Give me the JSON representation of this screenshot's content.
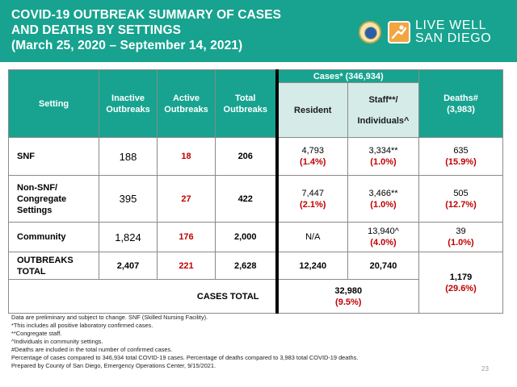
{
  "title": {
    "line1": "COVID-19 OUTBREAK SUMMARY OF CASES",
    "line2": "AND DEATHS BY SETTINGS",
    "line3": "(March 25, 2020 – September 14, 2021)"
  },
  "logo": {
    "line1": "LIVE WELL",
    "line2": "SAN DIEGO"
  },
  "table": {
    "headers": {
      "setting": "Setting",
      "inactive_1": "Inactive",
      "inactive_2": "Outbreaks",
      "active_1": "Active",
      "active_2": "Outbreaks",
      "total_1": "Total",
      "total_2": "Outbreaks",
      "cases_group": "Cases* (346,934)",
      "resident": "Resident",
      "staff_1": "Staff**/",
      "staff_2": "Individuals^",
      "deaths_1": "Deaths#",
      "deaths_2": "(3,983)"
    },
    "rows": [
      {
        "setting_1": "SNF",
        "setting_2": "",
        "setting_3": "",
        "inactive": "188",
        "active": "18",
        "total": "206",
        "resident": "4,793",
        "resident_pct": "(1.4%)",
        "staff": "3,334**",
        "staff_pct": "(1.0%)",
        "deaths": "635",
        "deaths_pct": "(15.9%)"
      },
      {
        "setting_1": "Non-SNF/",
        "setting_2": "Congregate",
        "setting_3": "Settings",
        "inactive": "395",
        "active": "27",
        "total": "422",
        "resident": "7,447",
        "resident_pct": "(2.1%)",
        "staff": "3,466**",
        "staff_pct": "(1.0%)",
        "deaths": "505",
        "deaths_pct": "(12.7%)"
      },
      {
        "setting_1": "Community",
        "setting_2": "",
        "setting_3": "",
        "inactive": "1,824",
        "active": "176",
        "total": "2,000",
        "resident": "N/A",
        "resident_pct": "",
        "staff": "13,940^",
        "staff_pct": "(4.0%)",
        "deaths": "39",
        "deaths_pct": "(1.0%)"
      }
    ],
    "totals": {
      "label_1": "OUTBREAKS",
      "label_2": "TOTAL",
      "inactive": "2,407",
      "active": "221",
      "total": "2,628",
      "resident": "12,240",
      "staff": "20,740",
      "deaths": "1,179",
      "deaths_pct": "(29.6%)"
    },
    "cases_total": {
      "label": "CASES TOTAL",
      "value": "32,980",
      "pct": "(9.5%)"
    }
  },
  "footnotes": [
    "Data are preliminary and subject to change. SNF (Skilled Nursing Facility).",
    "*This includes all positive laboratory confirmed cases.",
    "**Congregate staff.",
    "^Individuals in community settings.",
    "#Deaths are included in the total number of confirmed cases.",
    "Percentage of cases compared to 346,934 total COVID-19 cases. Percentage of deaths compared to 3,983 total COVID-19 deaths.",
    "Prepared by County of San Diego, Emergency Operations Center, 9/15/2021."
  ],
  "page_number": "23",
  "colors": {
    "header_teal": "#17a38f",
    "light_teal": "#d4ebe8",
    "red": "#c00000",
    "logo_orange": "#f2a541"
  }
}
